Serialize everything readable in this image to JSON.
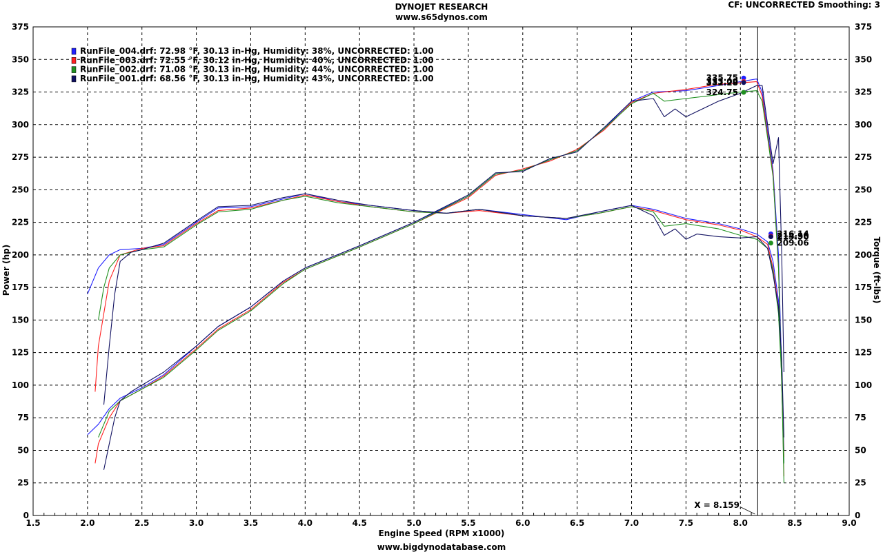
{
  "header": {
    "title": "DYNOJET RESEARCH",
    "website": "www.s65dynos.com",
    "correction": "CF: UNCORRECTED  Smoothing: 3"
  },
  "footer": {
    "url": "www.bigdynodatabase.com"
  },
  "chart_data": {
    "type": "line",
    "title": "DYNOJET RESEARCH",
    "xlabel": "Engine Speed (RPM x1000)",
    "ylabel": "Power (hp)",
    "y2label": "Torque (ft-lbs)",
    "xlim": [
      1.5,
      9.0
    ],
    "ylim": [
      0,
      375
    ],
    "y2lim": [
      0,
      375
    ],
    "x_ticks": [
      "1.5",
      "2.0",
      "2.5",
      "3.0",
      "3.5",
      "4.0",
      "4.5",
      "5.0",
      "5.5",
      "6.0",
      "6.5",
      "7.0",
      "7.5",
      "8.0",
      "8.5",
      "9.0"
    ],
    "y_ticks": [
      "0",
      "25",
      "50",
      "75",
      "100",
      "125",
      "150",
      "175",
      "200",
      "225",
      "250",
      "275",
      "300",
      "325",
      "350",
      "375"
    ],
    "grid": true,
    "legend_position": "top-left",
    "cursor": {
      "x": 8.159,
      "label": "X = 8.159"
    },
    "series": [
      {
        "name": "RunFile_004.drf: 72.98 °F, 30.13 in-Hg, Humidity: 38%, UNCORRECTED: 1.00",
        "color": "#2020ff",
        "marker_hp": 335.75,
        "marker_hp_label": "335.75",
        "marker_tq": 216.14,
        "marker_tq_label": "216.14",
        "hp": [
          [
            2.0,
            62
          ],
          [
            2.1,
            70
          ],
          [
            2.2,
            82
          ],
          [
            2.3,
            90
          ],
          [
            2.5,
            98
          ],
          [
            2.7,
            108
          ],
          [
            3.0,
            130
          ],
          [
            3.2,
            145
          ],
          [
            3.5,
            160
          ],
          [
            3.8,
            180
          ],
          [
            4.0,
            190
          ],
          [
            4.5,
            207
          ],
          [
            5.0,
            225
          ],
          [
            5.5,
            245
          ],
          [
            5.75,
            262
          ],
          [
            6.0,
            265
          ],
          [
            6.25,
            273
          ],
          [
            6.5,
            280
          ],
          [
            6.75,
            297
          ],
          [
            7.0,
            318
          ],
          [
            7.2,
            325
          ],
          [
            7.5,
            326
          ],
          [
            7.8,
            330
          ],
          [
            8.0,
            333
          ],
          [
            8.15,
            335
          ],
          [
            8.2,
            325
          ],
          [
            8.25,
            295
          ],
          [
            8.3,
            265
          ],
          [
            8.35,
            200
          ],
          [
            8.38,
            110
          ],
          [
            8.4,
            50
          ]
        ],
        "tq": [
          [
            2.0,
            170
          ],
          [
            2.1,
            190
          ],
          [
            2.2,
            200
          ],
          [
            2.3,
            204
          ],
          [
            2.5,
            205
          ],
          [
            2.7,
            208
          ],
          [
            3.0,
            225
          ],
          [
            3.2,
            236
          ],
          [
            3.5,
            237
          ],
          [
            3.8,
            243
          ],
          [
            4.0,
            247
          ],
          [
            4.3,
            241
          ],
          [
            4.6,
            238
          ],
          [
            5.0,
            234
          ],
          [
            5.3,
            232
          ],
          [
            5.6,
            235
          ],
          [
            6.0,
            231
          ],
          [
            6.4,
            227
          ],
          [
            6.7,
            233
          ],
          [
            7.0,
            238
          ],
          [
            7.2,
            235
          ],
          [
            7.5,
            228
          ],
          [
            7.8,
            224
          ],
          [
            8.0,
            220
          ],
          [
            8.15,
            216
          ],
          [
            8.25,
            210
          ],
          [
            8.3,
            195
          ],
          [
            8.35,
            165
          ],
          [
            8.38,
            120
          ],
          [
            8.4,
            40
          ]
        ]
      },
      {
        "name": "RunFile_003.drf: 72.55 °F, 30.12 in-Hg, Humidity: 40%, UNCORRECTED: 1.00",
        "color": "#ff2020",
        "marker_hp": 333.0,
        "marker_hp_label": "333.00",
        "marker_tq": 214.36,
        "marker_tq_label": "214.36",
        "hp": [
          [
            2.07,
            40
          ],
          [
            2.1,
            55
          ],
          [
            2.2,
            75
          ],
          [
            2.3,
            88
          ],
          [
            2.5,
            97
          ],
          [
            2.7,
            107
          ],
          [
            3.0,
            128
          ],
          [
            3.2,
            143
          ],
          [
            3.5,
            158
          ],
          [
            3.8,
            179
          ],
          [
            4.0,
            189
          ],
          [
            4.5,
            206
          ],
          [
            5.0,
            224
          ],
          [
            5.5,
            244
          ],
          [
            5.75,
            261
          ],
          [
            6.0,
            266
          ],
          [
            6.25,
            272
          ],
          [
            6.5,
            281
          ],
          [
            6.75,
            296
          ],
          [
            7.0,
            317
          ],
          [
            7.2,
            324
          ],
          [
            7.5,
            327
          ],
          [
            7.8,
            331
          ],
          [
            8.0,
            332
          ],
          [
            8.15,
            333
          ],
          [
            8.2,
            322
          ],
          [
            8.25,
            292
          ],
          [
            8.3,
            262
          ],
          [
            8.35,
            190
          ],
          [
            8.38,
            100
          ],
          [
            8.4,
            45
          ]
        ],
        "tq": [
          [
            2.07,
            95
          ],
          [
            2.1,
            130
          ],
          [
            2.2,
            180
          ],
          [
            2.3,
            200
          ],
          [
            2.5,
            205
          ],
          [
            2.7,
            207
          ],
          [
            3.0,
            224
          ],
          [
            3.2,
            234
          ],
          [
            3.5,
            236
          ],
          [
            3.8,
            242
          ],
          [
            4.0,
            246
          ],
          [
            4.3,
            241
          ],
          [
            4.6,
            237
          ],
          [
            5.0,
            233
          ],
          [
            5.3,
            232
          ],
          [
            5.6,
            234
          ],
          [
            6.0,
            230
          ],
          [
            6.4,
            228
          ],
          [
            6.7,
            232
          ],
          [
            7.0,
            237
          ],
          [
            7.2,
            234
          ],
          [
            7.5,
            227
          ],
          [
            7.8,
            223
          ],
          [
            8.0,
            219
          ],
          [
            8.15,
            214
          ],
          [
            8.25,
            208
          ],
          [
            8.3,
            190
          ],
          [
            8.35,
            160
          ],
          [
            8.38,
            110
          ],
          [
            8.4,
            30
          ]
        ]
      },
      {
        "name": "RunFile_002.drf: 71.08 °F, 30.13 in-Hg, Humidity: 44%, UNCORRECTED: 1.00",
        "color": "#209020",
        "marker_hp": 324.75,
        "marker_hp_label": "324.75",
        "marker_tq": 209.06,
        "marker_tq_label": "209.06",
        "hp": [
          [
            2.1,
            60
          ],
          [
            2.15,
            70
          ],
          [
            2.2,
            80
          ],
          [
            2.3,
            88
          ],
          [
            2.5,
            97
          ],
          [
            2.7,
            106
          ],
          [
            3.0,
            127
          ],
          [
            3.2,
            142
          ],
          [
            3.5,
            157
          ],
          [
            3.8,
            178
          ],
          [
            4.0,
            189
          ],
          [
            4.5,
            206
          ],
          [
            5.0,
            224
          ],
          [
            5.5,
            245
          ],
          [
            5.75,
            262
          ],
          [
            6.0,
            265
          ],
          [
            6.25,
            273
          ],
          [
            6.5,
            280
          ],
          [
            6.75,
            297
          ],
          [
            7.0,
            316
          ],
          [
            7.2,
            324
          ],
          [
            7.3,
            318
          ],
          [
            7.5,
            320
          ],
          [
            7.8,
            323
          ],
          [
            8.0,
            325
          ],
          [
            8.15,
            326
          ],
          [
            8.2,
            318
          ],
          [
            8.25,
            290
          ],
          [
            8.3,
            260
          ],
          [
            8.35,
            190
          ],
          [
            8.38,
            100
          ],
          [
            8.4,
            40
          ]
        ],
        "tq": [
          [
            2.1,
            150
          ],
          [
            2.15,
            175
          ],
          [
            2.2,
            190
          ],
          [
            2.3,
            200
          ],
          [
            2.5,
            204
          ],
          [
            2.7,
            206
          ],
          [
            3.0,
            223
          ],
          [
            3.2,
            233
          ],
          [
            3.5,
            235
          ],
          [
            3.8,
            242
          ],
          [
            4.0,
            245
          ],
          [
            4.3,
            240
          ],
          [
            4.6,
            237
          ],
          [
            5.0,
            233
          ],
          [
            5.3,
            232
          ],
          [
            5.6,
            235
          ],
          [
            6.0,
            230
          ],
          [
            6.4,
            228
          ],
          [
            6.7,
            232
          ],
          [
            7.0,
            237
          ],
          [
            7.2,
            233
          ],
          [
            7.3,
            222
          ],
          [
            7.5,
            224
          ],
          [
            7.8,
            220
          ],
          [
            8.0,
            215
          ],
          [
            8.15,
            212
          ],
          [
            8.25,
            205
          ],
          [
            8.3,
            188
          ],
          [
            8.35,
            155
          ],
          [
            8.38,
            105
          ],
          [
            8.4,
            25
          ]
        ]
      },
      {
        "name": "RunFile_001.drf: 68.56 °F, 30.13 in-Hg, Humidity: 43%, UNCORRECTED: 1.00",
        "color": "#101060",
        "marker_hp": 332.28,
        "marker_hp_label": "332.28",
        "marker_tq": 213.9,
        "marker_tq_label": "213.90",
        "hp": [
          [
            2.15,
            35
          ],
          [
            2.2,
            55
          ],
          [
            2.25,
            75
          ],
          [
            2.3,
            88
          ],
          [
            2.4,
            95
          ],
          [
            2.5,
            100
          ],
          [
            2.7,
            110
          ],
          [
            3.0,
            130
          ],
          [
            3.2,
            145
          ],
          [
            3.5,
            160
          ],
          [
            3.8,
            180
          ],
          [
            4.0,
            190
          ],
          [
            4.5,
            207
          ],
          [
            5.0,
            225
          ],
          [
            5.5,
            246
          ],
          [
            5.75,
            263
          ],
          [
            6.0,
            264
          ],
          [
            6.25,
            274
          ],
          [
            6.5,
            279
          ],
          [
            6.75,
            298
          ],
          [
            7.0,
            318
          ],
          [
            7.2,
            320
          ],
          [
            7.3,
            306
          ],
          [
            7.4,
            312
          ],
          [
            7.5,
            306
          ],
          [
            7.6,
            310
          ],
          [
            7.8,
            318
          ],
          [
            8.0,
            324
          ],
          [
            8.15,
            330
          ],
          [
            8.2,
            330
          ],
          [
            8.25,
            300
          ],
          [
            8.3,
            270
          ],
          [
            8.35,
            290
          ],
          [
            8.38,
            200
          ],
          [
            8.4,
            110
          ]
        ],
        "tq": [
          [
            2.15,
            85
          ],
          [
            2.2,
            130
          ],
          [
            2.25,
            170
          ],
          [
            2.3,
            195
          ],
          [
            2.4,
            202
          ],
          [
            2.5,
            204
          ],
          [
            2.7,
            209
          ],
          [
            3.0,
            226
          ],
          [
            3.2,
            237
          ],
          [
            3.5,
            238
          ],
          [
            3.8,
            244
          ],
          [
            4.0,
            247
          ],
          [
            4.3,
            242
          ],
          [
            4.6,
            238
          ],
          [
            5.0,
            234
          ],
          [
            5.3,
            232
          ],
          [
            5.6,
            235
          ],
          [
            6.0,
            230
          ],
          [
            6.4,
            228
          ],
          [
            6.7,
            233
          ],
          [
            7.0,
            238
          ],
          [
            7.2,
            230
          ],
          [
            7.3,
            215
          ],
          [
            7.4,
            220
          ],
          [
            7.5,
            212
          ],
          [
            7.6,
            216
          ],
          [
            7.8,
            214
          ],
          [
            8.0,
            213
          ],
          [
            8.15,
            214
          ],
          [
            8.25,
            205
          ],
          [
            8.3,
            185
          ],
          [
            8.35,
            160
          ],
          [
            8.38,
            120
          ],
          [
            8.4,
            60
          ]
        ]
      }
    ]
  }
}
